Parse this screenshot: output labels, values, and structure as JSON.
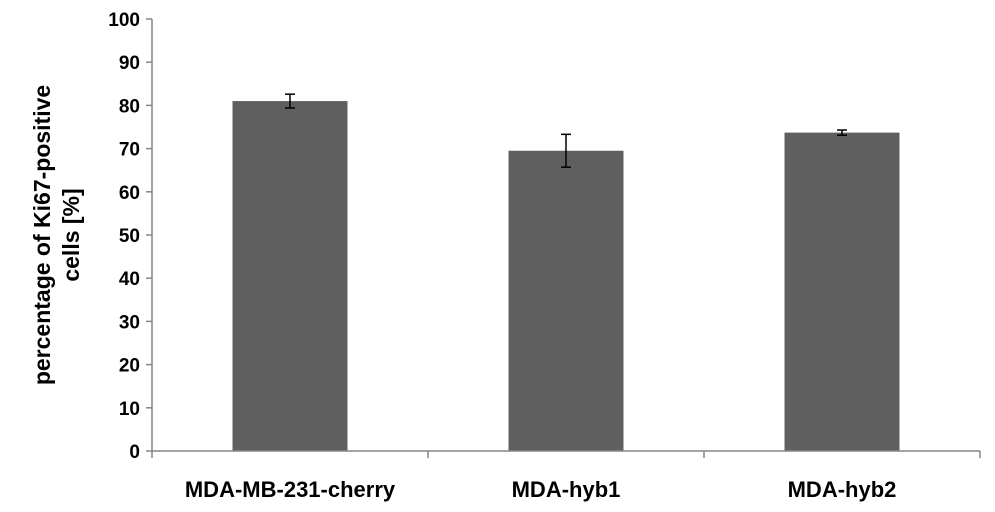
{
  "chart_data": {
    "type": "bar",
    "categories": [
      "MDA-MB-231-cherry",
      "MDA-hyb1",
      "MDA-hyb2"
    ],
    "values": [
      81,
      69.5,
      73.7
    ],
    "error_low": [
      79.4,
      65.7,
      73.1
    ],
    "error_high": [
      82.6,
      73.3,
      74.3
    ],
    "title": "",
    "xlabel": "",
    "ylabel_lines": [
      "percentage of Ki67-positive",
      "cells [%]"
    ],
    "ylim": [
      0,
      100
    ],
    "yticks": [
      0,
      10,
      20,
      30,
      40,
      50,
      60,
      70,
      80,
      90,
      100
    ],
    "grid": false,
    "legend": "none",
    "colors": {
      "bar": "#5f5f5f",
      "axis": "#868686",
      "error": "#000000"
    }
  }
}
